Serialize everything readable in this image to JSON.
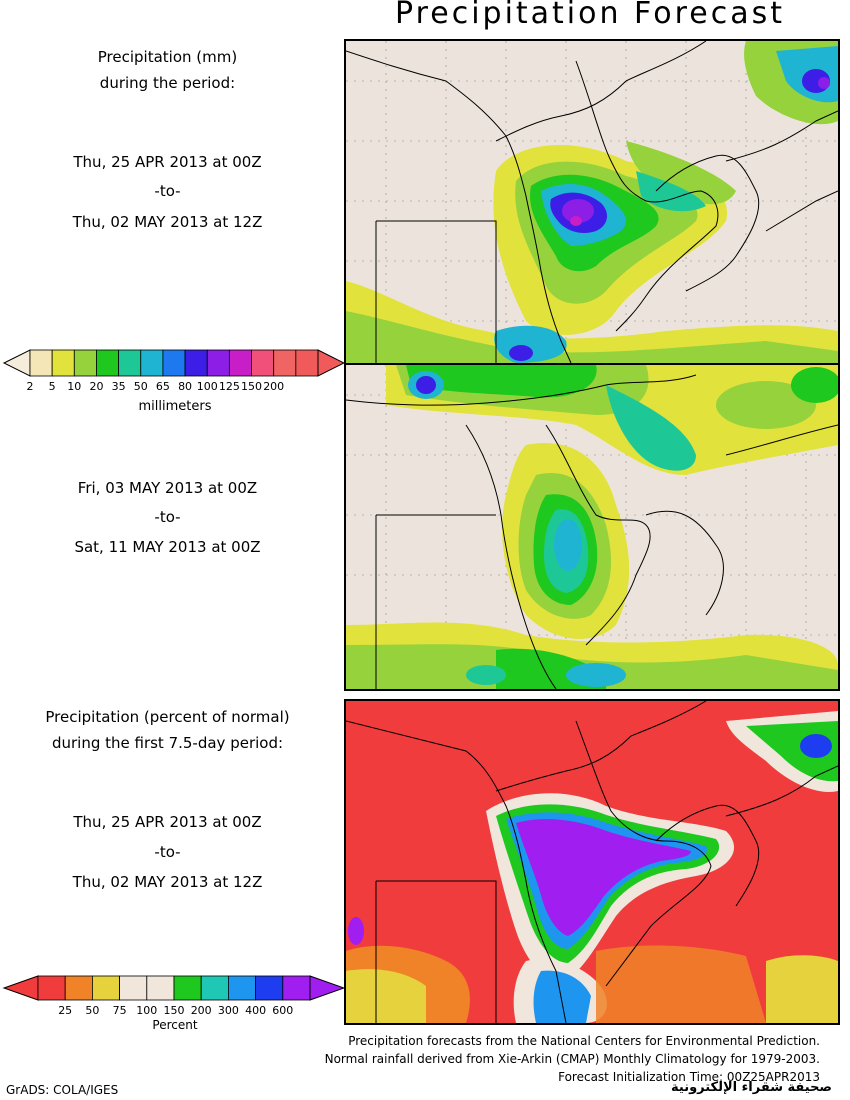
{
  "title": "Precipitation Forecast",
  "panel1": {
    "label_line1": "Precipitation (mm)",
    "label_line2": "during the period:",
    "start": "Thu, 25 APR 2013 at 00Z",
    "to": "-to-",
    "end": "Thu, 02 MAY 2013 at 12Z"
  },
  "colorbar_mm": {
    "ticks": [
      "2",
      "5",
      "10",
      "20",
      "35",
      "50",
      "65",
      "80",
      "100",
      "125",
      "150",
      "200"
    ],
    "colors": [
      "#f5e6b8",
      "#e2e23c",
      "#96d23c",
      "#1ec81e",
      "#1ec896",
      "#1eb4d2",
      "#1e78f0",
      "#3c1ee6",
      "#8c1ee6",
      "#c81ec8",
      "#f0507a",
      "#f06464",
      "#f05a5a"
    ],
    "unit": "millimeters"
  },
  "panel2": {
    "start": "Fri, 03 MAY 2013 at 00Z",
    "to": "-to-",
    "end": "Sat, 11 MAY 2013 at 00Z"
  },
  "panel3": {
    "label_line1": "Precipitation (percent of normal)",
    "label_line2": "during the first 7.5-day period:",
    "start": "Thu, 25 APR 2013 at 00Z",
    "to": "-to-",
    "end": "Thu, 02 MAY 2013 at 12Z"
  },
  "colorbar_pct": {
    "ticks": [
      "25",
      "50",
      "75",
      "100",
      "150",
      "200",
      "300",
      "400",
      "600"
    ],
    "colors": [
      "#f03c3c",
      "#f08228",
      "#e6d23c",
      "#f0e6dc",
      "#f0e6dc",
      "#1ec81e",
      "#1ec8b4",
      "#1e96f0",
      "#1e3cf0",
      "#a01ef0"
    ],
    "unit": "Percent"
  },
  "credits": [
    "Precipitation forecasts from the National Centers for Environmental Prediction.",
    "Normal rainfall derived from Xie-Arkin (CMAP) Monthly Climatology for 1979-2003.",
    "Forecast Initialization Time: 00Z25APR2013"
  ],
  "grads": "GrADS: COLA/IGES",
  "watermark": "صحيفة شقراء الإلكترونية",
  "colors": {
    "land": "#ece4dc",
    "red_background": "#f03c3c"
  }
}
